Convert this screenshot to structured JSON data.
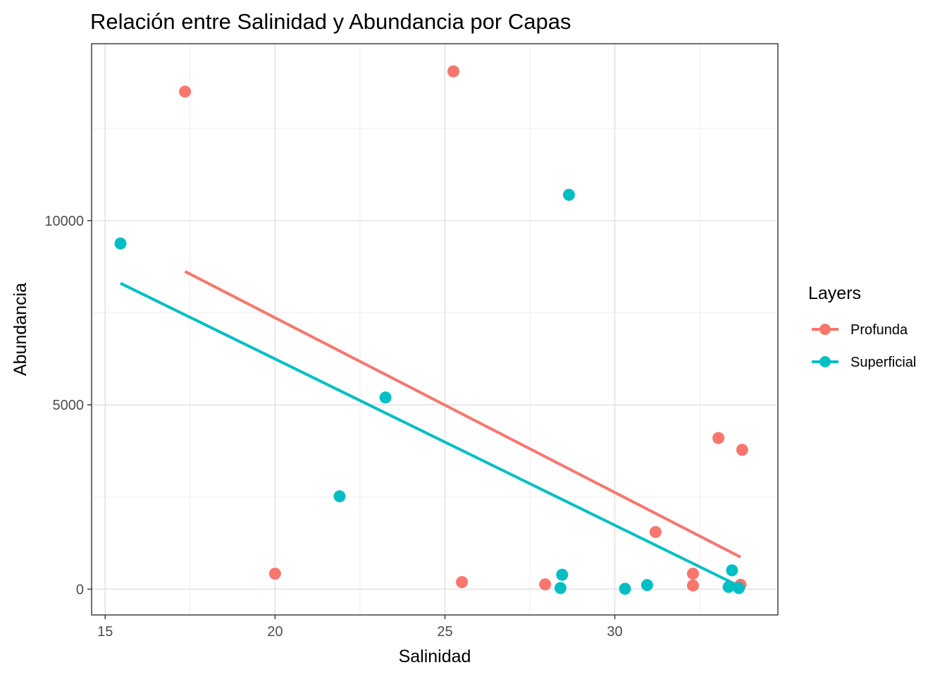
{
  "chart_data": {
    "type": "scatter",
    "title": "Relación entre Salinidad y Abundancia por Capas",
    "xlabel": "Salinidad",
    "ylabel": "Abundancia",
    "xlim": [
      14.6,
      34.8
    ],
    "ylim": [
      -700,
      14800
    ],
    "x_ticks": [
      15,
      20,
      25,
      30
    ],
    "x_tick_labels": [
      "15",
      "20",
      "25",
      "30"
    ],
    "y_ticks": [
      0,
      5000,
      10000
    ],
    "y_tick_labels": [
      "0",
      "5000",
      "10000"
    ],
    "grid": true,
    "legend": {
      "title": "Layers",
      "placement": "right"
    },
    "series": [
      {
        "name": "Profunda",
        "color": "#F8766D",
        "points": [
          {
            "x": 17.35,
            "y": 13500
          },
          {
            "x": 25.25,
            "y": 14050
          },
          {
            "x": 20.0,
            "y": 420
          },
          {
            "x": 25.5,
            "y": 190
          },
          {
            "x": 27.95,
            "y": 130
          },
          {
            "x": 31.2,
            "y": 1550
          },
          {
            "x": 32.3,
            "y": 420
          },
          {
            "x": 32.3,
            "y": 100
          },
          {
            "x": 33.05,
            "y": 4100
          },
          {
            "x": 33.75,
            "y": 3780
          },
          {
            "x": 33.7,
            "y": 120
          }
        ],
        "trend": [
          {
            "x": 17.35,
            "y": 8620
          },
          {
            "x": 33.7,
            "y": 870
          }
        ]
      },
      {
        "name": "Superficial",
        "color": "#00BFC4",
        "points": [
          {
            "x": 15.45,
            "y": 9380
          },
          {
            "x": 28.65,
            "y": 10700
          },
          {
            "x": 23.25,
            "y": 5200
          },
          {
            "x": 21.9,
            "y": 2520
          },
          {
            "x": 28.45,
            "y": 390
          },
          {
            "x": 28.4,
            "y": 30
          },
          {
            "x": 30.3,
            "y": 10
          },
          {
            "x": 30.95,
            "y": 110
          },
          {
            "x": 33.45,
            "y": 510
          },
          {
            "x": 33.35,
            "y": 60
          },
          {
            "x": 33.65,
            "y": 30
          }
        ],
        "trend": [
          {
            "x": 15.45,
            "y": 8300
          },
          {
            "x": 33.6,
            "y": 110
          }
        ]
      }
    ]
  }
}
